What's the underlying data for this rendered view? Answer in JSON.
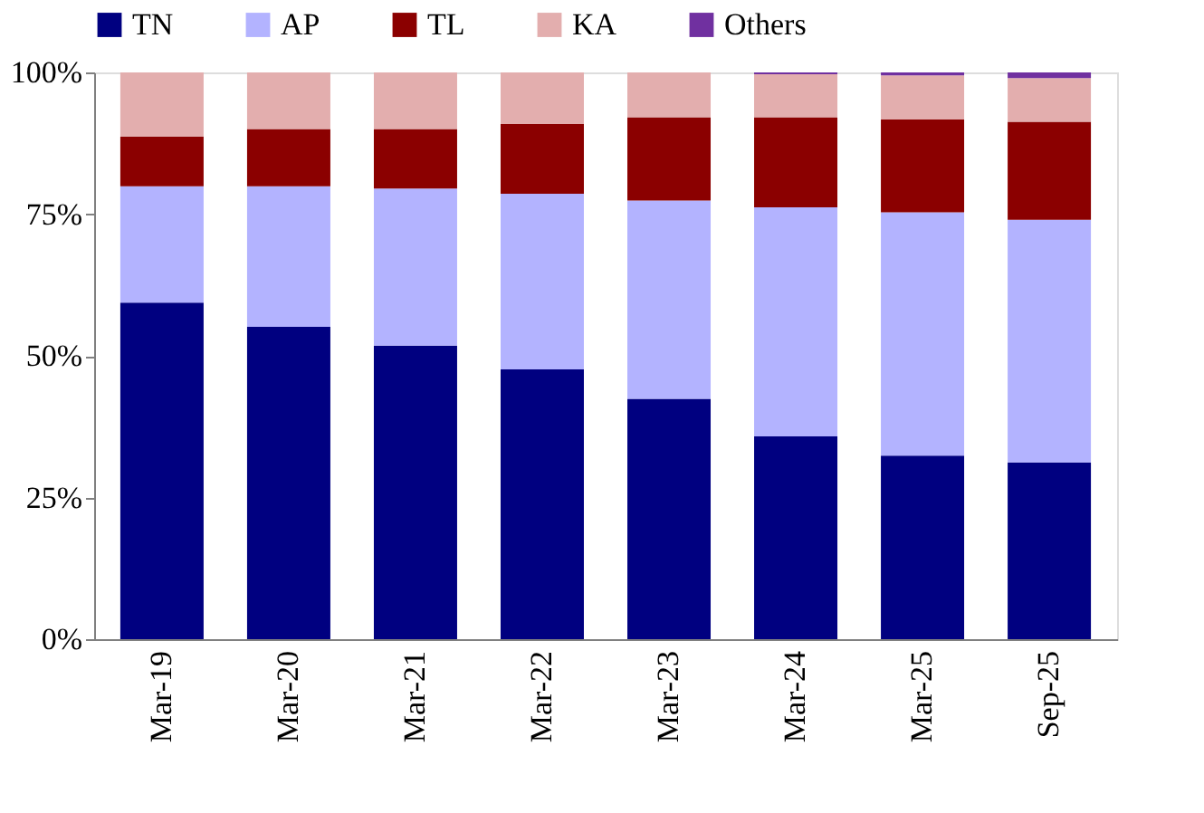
{
  "chart_data": {
    "type": "bar",
    "stacked": true,
    "categories": [
      "Mar-19",
      "Mar-20",
      "Mar-21",
      "Mar-22",
      "Mar-23",
      "Mar-24",
      "Mar-25",
      "Sep-25"
    ],
    "series": [
      {
        "name": "TN",
        "color": "#000080",
        "values": [
          59.4,
          55.1,
          51.8,
          47.6,
          42.4,
          35.8,
          32.4,
          31.2
        ]
      },
      {
        "name": "AP",
        "color": "#b3b3ff",
        "values": [
          20.5,
          24.8,
          27.7,
          31.0,
          35.0,
          40.4,
          42.9,
          42.8
        ]
      },
      {
        "name": "TL",
        "color": "#8b0000",
        "values": [
          8.8,
          10.1,
          10.5,
          12.3,
          14.7,
          15.9,
          16.4,
          17.3
        ]
      },
      {
        "name": "KA",
        "color": "#e3aeae",
        "values": [
          11.3,
          10.0,
          10.0,
          9.1,
          7.9,
          7.6,
          7.8,
          7.7
        ]
      },
      {
        "name": "Others",
        "color": "#7030a0",
        "values": [
          0,
          0,
          0,
          0,
          0,
          0.3,
          0.5,
          1.0
        ]
      }
    ],
    "ylim": [
      0,
      100
    ],
    "yticks": [
      {
        "value": 0,
        "label": "0%"
      },
      {
        "value": 25,
        "label": "25%"
      },
      {
        "value": 50,
        "label": "50%"
      },
      {
        "value": 75,
        "label": "75%"
      },
      {
        "value": 100,
        "label": "100%"
      }
    ],
    "grid": false,
    "legend": "top"
  }
}
